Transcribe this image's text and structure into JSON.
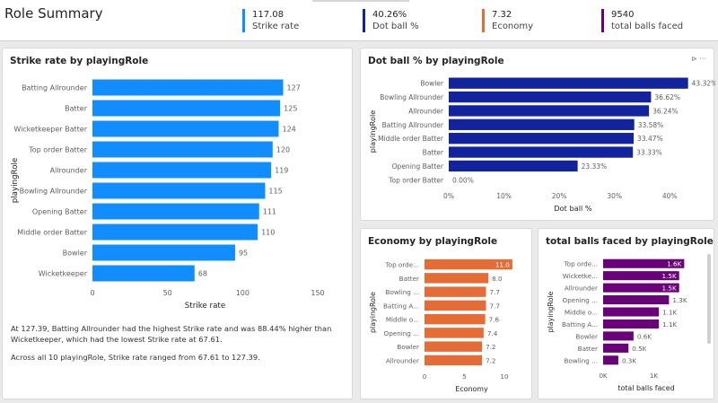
{
  "header": {
    "title": "Role Summary",
    "kpis": [
      {
        "value": "117.08",
        "label": "Strike rate",
        "color": "#118dff"
      },
      {
        "value": "40.26%",
        "label": "Dot ball %",
        "color": "#12239e"
      },
      {
        "value": "7.32",
        "label": "Economy",
        "color": "#e66c37"
      },
      {
        "value": "9540",
        "label": "total balls faced",
        "color": "#6b007b"
      }
    ]
  },
  "narrative": {
    "line1": "At 127.39, Batting Allrounder had the highest Strike rate and was 88.44% higher than Wicketkeeper, which had the lowest Strike rate at 67.61.",
    "line2": "Across all 10 playingRole, Strike rate ranged from 67.61 to 127.39."
  },
  "chart_data": [
    {
      "id": "strike",
      "type": "bar",
      "orientation": "horizontal",
      "title": "Strike rate by playingRole",
      "xlabel": "Strike rate",
      "ylabel": "playingRole",
      "color": "#118dff",
      "xlim": [
        0,
        150
      ],
      "xticks": [
        "0",
        "50",
        "100",
        "150"
      ],
      "categories": [
        "Batting Allrounder",
        "Batter",
        "Wicketkeeper Batter",
        "Top order Batter",
        "Allrounder",
        "Bowling Allrounder",
        "Opening Batter",
        "Middle order Batter",
        "Bowler",
        "Wicketkeeper"
      ],
      "values": [
        127,
        125,
        124,
        120,
        119,
        115,
        111,
        110,
        95,
        68
      ],
      "labels": [
        "127",
        "125",
        "124",
        "120",
        "119",
        "115",
        "111",
        "110",
        "95",
        "68"
      ]
    },
    {
      "id": "dot",
      "type": "bar",
      "orientation": "horizontal",
      "title": "Dot ball % by playingRole",
      "xlabel": "Dot ball %",
      "ylabel": "playingRole",
      "color": "#12239e",
      "xlim": [
        0,
        45
      ],
      "xticks": [
        "0%",
        "10%",
        "20%",
        "30%",
        "40%"
      ],
      "categories": [
        "Bowler",
        "Bowling Allrounder",
        "Allrounder",
        "Batting Allrounder",
        "Middle order Batter",
        "Batter",
        "Opening Batter",
        "Top order Batter"
      ],
      "values": [
        43.32,
        36.62,
        36.24,
        33.58,
        33.47,
        33.33,
        23.33,
        0
      ],
      "labels": [
        "43.32%",
        "36.62%",
        "36.24%",
        "33.58%",
        "33.47%",
        "33.33%",
        "23.33%",
        "0.00%"
      ]
    },
    {
      "id": "economy",
      "type": "bar",
      "orientation": "horizontal",
      "title": "Economy by playingRole",
      "xlabel": "Economy",
      "ylabel": "playingRole",
      "color": "#e66c37",
      "xlim": [
        0,
        11.8
      ],
      "xticks": [
        "0",
        "5",
        "10"
      ],
      "categories": [
        "Top orde...",
        "Batter",
        "Bowling ...",
        "Batting A...",
        "Middle o...",
        "Opening ...",
        "Bowler",
        "Allrounder"
      ],
      "values": [
        11.0,
        8.0,
        7.7,
        7.7,
        7.6,
        7.4,
        7.2,
        7.2
      ],
      "labels": [
        "11.0",
        "8.0",
        "7.7",
        "7.7",
        "7.6",
        "7.4",
        "7.2",
        "7.2"
      ]
    },
    {
      "id": "balls",
      "type": "bar",
      "orientation": "horizontal",
      "title": "total balls faced by playingRole",
      "xlabel": "total balls faced",
      "ylabel": "playingRole",
      "color": "#6b007b",
      "xlim": [
        0,
        1700
      ],
      "xticks": [
        "0K",
        "1K"
      ],
      "categories": [
        "Top orde...",
        "Wicketke...",
        "Allrounder",
        "Opening ...",
        "Middle o...",
        "Batting A...",
        "Bowler",
        "Batter",
        "Bowling ..."
      ],
      "values": [
        1600,
        1500,
        1500,
        1300,
        1100,
        1100,
        600,
        500,
        300
      ],
      "labels": [
        "1.6K",
        "1.5K",
        "1.5K",
        "1.3K",
        "1.1K",
        "1.1K",
        "0.6K",
        "0.5K",
        "0.3K"
      ]
    }
  ]
}
